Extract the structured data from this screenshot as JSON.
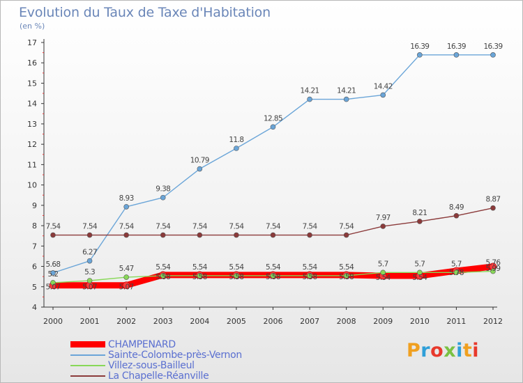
{
  "title": "Evolution du Taux de Taxe d'Habitation",
  "subtitle": "(en %)",
  "logo": {
    "text": "Proxiti",
    "colors": [
      "#f0a020",
      "#2f9fd8",
      "#e8392c",
      "#7ac143",
      "#2f9fd8",
      "#f0a020",
      "#e8392c"
    ]
  },
  "chart_data": {
    "type": "line",
    "x": [
      2000,
      2001,
      2002,
      2003,
      2004,
      2005,
      2006,
      2007,
      2008,
      2009,
      2010,
      2011,
      2012
    ],
    "ylim": [
      4,
      17
    ],
    "yticks": [
      4,
      5,
      6,
      7,
      8,
      9,
      10,
      11,
      12,
      13,
      14,
      15,
      16,
      17
    ],
    "grid": false,
    "legend": "bottom-left",
    "series": [
      {
        "name": "CHAMPENARD",
        "color": "#ff0000",
        "values": [
          5.07,
          5.07,
          5.07,
          5.58,
          5.58,
          5.58,
          5.58,
          5.58,
          5.58,
          5.54,
          5.54,
          5.78,
          5.99
        ]
      },
      {
        "name": "Sainte-Colombe-près-Vernon",
        "color": "#6aa5d8",
        "values": [
          5.68,
          6.27,
          8.93,
          9.38,
          10.79,
          11.8,
          12.85,
          14.21,
          14.21,
          14.42,
          16.39,
          16.39,
          16.39
        ]
      },
      {
        "name": "Villez-sous-Bailleul",
        "color": "#88d858",
        "values": [
          5.2,
          5.3,
          5.47,
          5.54,
          5.54,
          5.54,
          5.54,
          5.54,
          5.54,
          5.7,
          5.7,
          5.7,
          5.76
        ]
      },
      {
        "name": "La Chapelle-Réanville",
        "color": "#8b3a3a",
        "values": [
          7.54,
          7.54,
          7.54,
          7.54,
          7.54,
          7.54,
          7.54,
          7.54,
          7.54,
          7.97,
          8.21,
          8.49,
          8.87
        ]
      }
    ]
  }
}
